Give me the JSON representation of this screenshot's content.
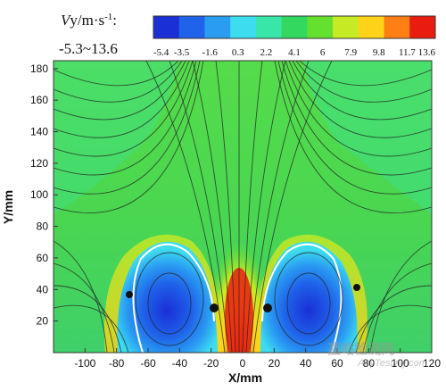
{
  "chart_data": {
    "type": "heatmap",
    "title": "",
    "xlabel": "X/mm",
    "ylabel": "Y/mm",
    "xlim": [
      -120,
      120
    ],
    "ylim": [
      0,
      185
    ],
    "x_ticks": [
      "-100",
      "-80",
      "-60",
      "-40",
      "-20",
      "0",
      "20",
      "40",
      "60",
      "80",
      "100",
      "120"
    ],
    "x_tick_values": [
      -100,
      -80,
      -60,
      -40,
      -20,
      0,
      20,
      40,
      60,
      80,
      100,
      120
    ],
    "y_ticks": [
      "20",
      "40",
      "60",
      "80",
      "100",
      "120",
      "140",
      "160",
      "180"
    ],
    "y_tick_values": [
      20,
      40,
      60,
      80,
      100,
      120,
      140,
      160,
      180
    ],
    "colorbar": {
      "title_var": "V",
      "title_rest": "y/m·s",
      "title_exp": "-1",
      "title_colon": ":",
      "range_text": "-5.3~13.6",
      "labels": [
        "-5.4",
        "-3.5",
        "-1.6",
        "0.3",
        "2.2",
        "4.1",
        "6",
        "7.9",
        "9.8",
        "11.7",
        "13.6"
      ],
      "values": [
        -5.4,
        -3.5,
        -1.6,
        0.3,
        2.2,
        4.1,
        6,
        7.9,
        9.8,
        11.7,
        13.6
      ],
      "colors": [
        "#1a2fd6",
        "#1f63ea",
        "#2a9cf2",
        "#3ddcee",
        "#37e6a8",
        "#33d85e",
        "#66e02e",
        "#c6ea24",
        "#ffd21a",
        "#ff7f14",
        "#e81d10"
      ]
    },
    "regions": [
      {
        "name": "upward-jet",
        "x_range": [
          -12,
          12
        ],
        "y_range": [
          0,
          70
        ],
        "vy_max": 13.6
      },
      {
        "name": "recirculation-left",
        "center": [
          -40,
          45
        ],
        "vy_min": -5.3
      },
      {
        "name": "recirculation-right",
        "center": [
          40,
          45
        ],
        "vy_min": -5.3
      },
      {
        "name": "ambient-flow",
        "vy_approx": 4.1
      }
    ],
    "grid": false,
    "legend_position": "top"
  },
  "watermark": {
    "text": "嘉峪检测网",
    "subtext": "AnyTesting.com"
  }
}
